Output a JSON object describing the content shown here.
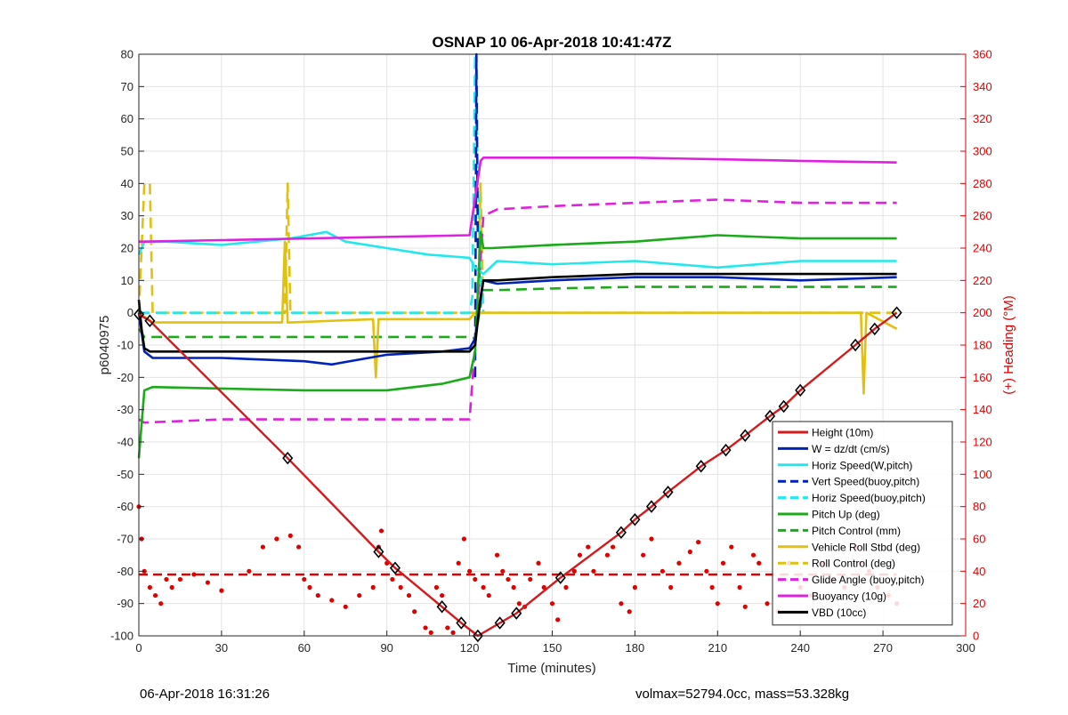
{
  "chart_data": {
    "type": "line",
    "title": "OSNAP 10 06-Apr-2018 10:41:47Z",
    "xlabel": "Time (minutes)",
    "ylabel": "p6040975",
    "ylabel_right": "(+) Heading (°M)",
    "xlim": [
      0,
      300
    ],
    "ylim": [
      -100,
      80
    ],
    "ylim_right": [
      0,
      360
    ],
    "x_ticks": [
      "0",
      "30",
      "60",
      "90",
      "120",
      "150",
      "180",
      "210",
      "240",
      "270",
      "300"
    ],
    "y_ticks": [
      "-100",
      "-90",
      "-80",
      "-70",
      "-60",
      "-50",
      "-40",
      "-30",
      "-20",
      "-10",
      "0",
      "10",
      "20",
      "30",
      "40",
      "50",
      "60",
      "70",
      "80"
    ],
    "y_ticks_right": [
      "0",
      "20",
      "40",
      "60",
      "80",
      "100",
      "120",
      "140",
      "160",
      "180",
      "200",
      "220",
      "240",
      "260",
      "280",
      "300",
      "320",
      "340",
      "360"
    ],
    "grid": true,
    "legend_position": "bottom-right",
    "colors": {
      "height": "#d7191c",
      "w": "#0022bb",
      "horiz_speed": "#22e8ee",
      "pitch": "#1aaa1a",
      "roll": "#e0c010",
      "glide": "#e020e0",
      "vbd": "#000000",
      "heading": "#e00000"
    },
    "series": [
      {
        "key": "height",
        "name": "Height (10m)",
        "style": "solid",
        "color": "#d7191c",
        "x": [
          0,
          4,
          54,
          87,
          93,
          110,
          117,
          123,
          131,
          137,
          153,
          175,
          180,
          186,
          192,
          204,
          213,
          220,
          229,
          234,
          240,
          260,
          267,
          275
        ],
        "y": [
          -0.5,
          -2.5,
          -45,
          -74,
          -79,
          -91,
          -96,
          -100,
          -96,
          -93,
          -82,
          -68,
          -64,
          -60,
          -55.5,
          -47.5,
          -42.5,
          -38,
          -32,
          -29,
          -24,
          -10,
          -5,
          0
        ]
      },
      {
        "key": "w",
        "name": "W = dz/dt (cm/s)",
        "style": "solid",
        "color": "#0022bb",
        "x": [
          0,
          2,
          5,
          30,
          60,
          70,
          90,
          110,
          120,
          122,
          125,
          130,
          150,
          180,
          210,
          240,
          275
        ],
        "y": [
          0,
          -12,
          -14,
          -14,
          -15,
          -16,
          -13,
          -12,
          -11,
          -8,
          10,
          9,
          10,
          11,
          11,
          10,
          11
        ]
      },
      {
        "key": "horiz_speed",
        "name": "Horiz Speed(W,pitch)",
        "style": "solid",
        "color": "#22e8ee",
        "x": [
          0,
          2,
          10,
          30,
          55,
          68,
          75,
          90,
          105,
          120,
          122,
          125,
          130,
          150,
          180,
          210,
          240,
          275
        ],
        "y": [
          18,
          22,
          22,
          21,
          23,
          25,
          22,
          20,
          18,
          17,
          14,
          12,
          16,
          15,
          16,
          14,
          16,
          16
        ]
      },
      {
        "key": "vert_speed",
        "name": "Vert Speed(buoy,pitch)",
        "style": "dashed",
        "color": "#0022bb",
        "x": [
          122,
          122.5,
          123
        ],
        "y": [
          -20,
          80,
          20
        ]
      },
      {
        "key": "horiz_speed_buoy",
        "name": "Horiz Speed(buoy,pitch)",
        "style": "dashed",
        "color": "#22e8ee",
        "x": [
          0,
          120,
          121,
          122,
          123,
          124,
          125
        ],
        "y": [
          0,
          0,
          5,
          80,
          40,
          10,
          0
        ]
      },
      {
        "key": "pitch",
        "name": "Pitch Up (deg)",
        "style": "solid",
        "color": "#1aaa1a",
        "x": [
          0,
          2,
          5,
          60,
          90,
          110,
          120,
          122,
          124,
          125,
          128,
          150,
          180,
          210,
          240,
          275
        ],
        "y": [
          -45,
          -24,
          -23,
          -24,
          -24,
          -22,
          -20,
          -12,
          25,
          20,
          20,
          21,
          22,
          24,
          23,
          23
        ]
      },
      {
        "key": "pitch_control",
        "name": "Pitch Control (mm)",
        "style": "dashed",
        "color": "#1aaa1a",
        "x": [
          0,
          2,
          120,
          122,
          125,
          130,
          150,
          180,
          210,
          240,
          275
        ],
        "y": [
          -5,
          -7.5,
          -7.5,
          -8,
          7,
          7,
          7.5,
          8,
          8,
          8,
          8
        ]
      },
      {
        "key": "roll",
        "name": "Vehicle Roll Stbd (deg)",
        "style": "solid",
        "color": "#e0c010",
        "x": [
          0,
          5,
          30,
          52,
          53,
          54,
          55,
          85,
          86,
          87,
          88,
          120,
          122,
          125,
          150,
          180,
          210,
          240,
          262,
          263,
          264,
          275
        ],
        "y": [
          0,
          -3,
          -3,
          -3,
          22,
          -3,
          -3,
          -2,
          -20,
          -2,
          -2,
          -2,
          0,
          0,
          0,
          0,
          0,
          0,
          0,
          -25,
          0,
          -5
        ]
      },
      {
        "key": "roll_control",
        "name": "Roll Control (deg)",
        "style": "dashed",
        "color": "#e0c010",
        "x": [
          0,
          2,
          4,
          5,
          53,
          54,
          55,
          123,
          124,
          125,
          275
        ],
        "y": [
          0,
          40,
          40,
          0,
          0,
          40,
          0,
          0,
          40,
          0,
          0
        ]
      },
      {
        "key": "glide",
        "name": "Glide Angle (buoy,pitch)",
        "style": "dashed",
        "color": "#e020e0",
        "x": [
          0,
          2,
          30,
          60,
          90,
          110,
          120,
          122,
          125,
          130,
          150,
          180,
          210,
          240,
          275
        ],
        "y": [
          -33,
          -34,
          -33,
          -33,
          -33,
          -33,
          -33,
          -10,
          30,
          32,
          33,
          34,
          35,
          34,
          34
        ]
      },
      {
        "key": "buoyancy",
        "name": "Buoyancy (10g)",
        "style": "solid",
        "color": "#e020e0",
        "x": [
          0,
          2,
          120,
          124,
          125,
          150,
          180,
          210,
          240,
          275
        ],
        "y": [
          22,
          22,
          24,
          47,
          48,
          48,
          48,
          47.5,
          47,
          46.5
        ]
      },
      {
        "key": "vbd",
        "name": "VBD (10cc)",
        "style": "solid",
        "color": "#000000",
        "x": [
          0,
          1,
          2,
          4,
          30,
          60,
          90,
          120,
          122,
          124,
          125,
          130,
          150,
          180,
          210,
          240,
          275
        ],
        "y": [
          4,
          -5,
          -11,
          -12,
          -12,
          -12,
          -12,
          -12,
          -10,
          5,
          10,
          10,
          11,
          12,
          12,
          12,
          12
        ]
      }
    ],
    "heading": {
      "name": "Heading",
      "color": "#e00000",
      "axis": "right",
      "target_heading": 38,
      "x": [
        0,
        1,
        2,
        4,
        6,
        8,
        10,
        12,
        15,
        20,
        25,
        30,
        40,
        45,
        50,
        55,
        58,
        60,
        62,
        65,
        70,
        75,
        80,
        85,
        87,
        88,
        90,
        92,
        95,
        98,
        100,
        104,
        106,
        108,
        110,
        112,
        114,
        116,
        118,
        120,
        122,
        125,
        127,
        130,
        132,
        134,
        136,
        138,
        140,
        142,
        145,
        147,
        150,
        152,
        155,
        158,
        160,
        163,
        165,
        170,
        172,
        175,
        178,
        180,
        183,
        186,
        190,
        193,
        196,
        200,
        203,
        206,
        208,
        210,
        212,
        215,
        218,
        220,
        223,
        225,
        228,
        232,
        236,
        240,
        244,
        248,
        252,
        256,
        260,
        262,
        265,
        268,
        272,
        275
      ],
      "y": [
        80,
        60,
        40,
        30,
        25,
        20,
        35,
        30,
        35,
        38,
        33,
        28,
        40,
        55,
        60,
        62,
        55,
        35,
        30,
        25,
        22,
        18,
        25,
        30,
        55,
        65,
        45,
        35,
        30,
        25,
        15,
        5,
        2,
        30,
        25,
        5,
        2,
        45,
        60,
        40,
        35,
        30,
        25,
        50,
        40,
        35,
        30,
        20,
        18,
        35,
        45,
        30,
        20,
        10,
        30,
        40,
        50,
        55,
        40,
        50,
        55,
        20,
        15,
        30,
        50,
        60,
        40,
        30,
        45,
        52,
        58,
        40,
        30,
        20,
        45,
        55,
        30,
        18,
        50,
        45,
        20,
        15,
        45,
        30,
        25,
        45,
        35,
        30,
        55,
        45,
        40,
        30,
        25,
        20
      ]
    }
  },
  "footer": {
    "timestamp": "06-Apr-2018 16:31:26",
    "summary": "volmax=52794.0cc, mass=53.328kg"
  }
}
